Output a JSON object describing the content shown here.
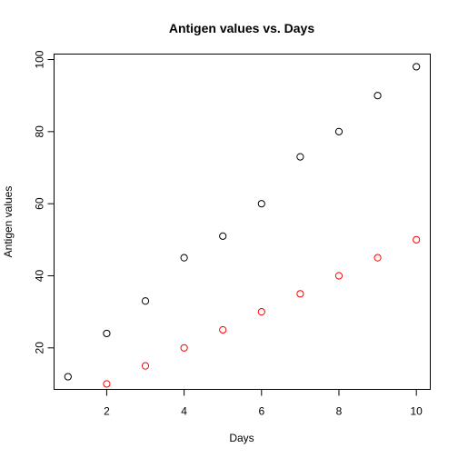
{
  "chart_data": {
    "type": "scatter",
    "title": "Antigen values vs. Days",
    "xlabel": "Days",
    "ylabel": "Antigen values",
    "xlim": [
      0.64,
      10.36
    ],
    "ylim": [
      8.48,
      101.52
    ],
    "x_ticks": [
      2,
      4,
      6,
      8,
      10
    ],
    "y_ticks": [
      20,
      40,
      60,
      80,
      100
    ],
    "grid": false,
    "legend": "none",
    "series": [
      {
        "color": "#000000",
        "x": [
          1,
          2,
          3,
          4,
          5,
          6,
          7,
          8,
          9,
          10
        ],
        "y": [
          12,
          24,
          33,
          45,
          51,
          60,
          73,
          80,
          90,
          98
        ]
      },
      {
        "color": "#ff0000",
        "x": [
          2,
          3,
          4,
          5,
          6,
          7,
          8,
          9,
          10
        ],
        "y": [
          10,
          15,
          20,
          25,
          30,
          35,
          40,
          45,
          50
        ]
      }
    ]
  }
}
